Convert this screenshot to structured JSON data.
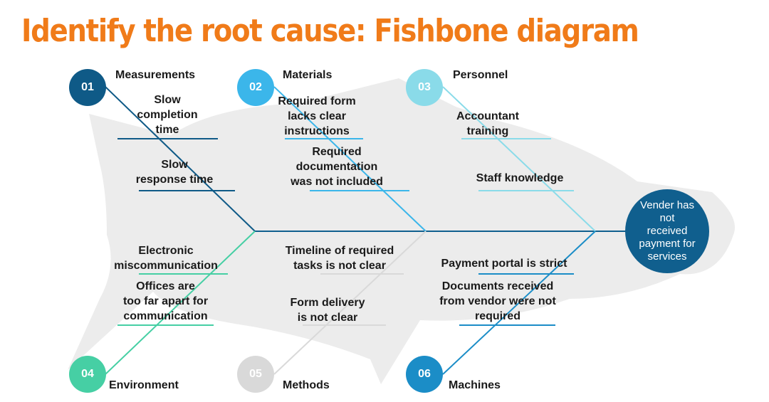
{
  "title": "Identify the root cause: Fishbone diagram",
  "effect": "Vender has\nnot\nreceived\npayment for\nservices",
  "categories": [
    {
      "number": "01",
      "label": "Measurements",
      "color": "#0f5a87",
      "causes": [
        "Slow\ncompletion\ntime",
        "Slow\nresponse time"
      ]
    },
    {
      "number": "02",
      "label": "Materials",
      "color": "#3bb6ea",
      "causes": [
        "Required form\nlacks clear\ninstructions",
        "Required\ndocumentation\nwas not included"
      ]
    },
    {
      "number": "03",
      "label": "Personnel",
      "color": "#8adbe9",
      "causes": [
        "Accountant\ntraining",
        "Staff knowledge"
      ]
    },
    {
      "number": "04",
      "label": "Environment",
      "color": "#46cfa4",
      "causes": [
        "Electronic\nmiscommunication",
        "Offices are\ntoo far apart for\ncommunication"
      ]
    },
    {
      "number": "05",
      "label": "Methods",
      "color": "#d9d9d9",
      "causes": [
        "Timeline of required\ntasks is not clear",
        "Form delivery\nis not clear"
      ]
    },
    {
      "number": "06",
      "label": "Machines",
      "color": "#1b8dc7",
      "causes": [
        "Payment portal is strict",
        "Documents received\nfrom vendor were not\nrequired"
      ]
    }
  ]
}
